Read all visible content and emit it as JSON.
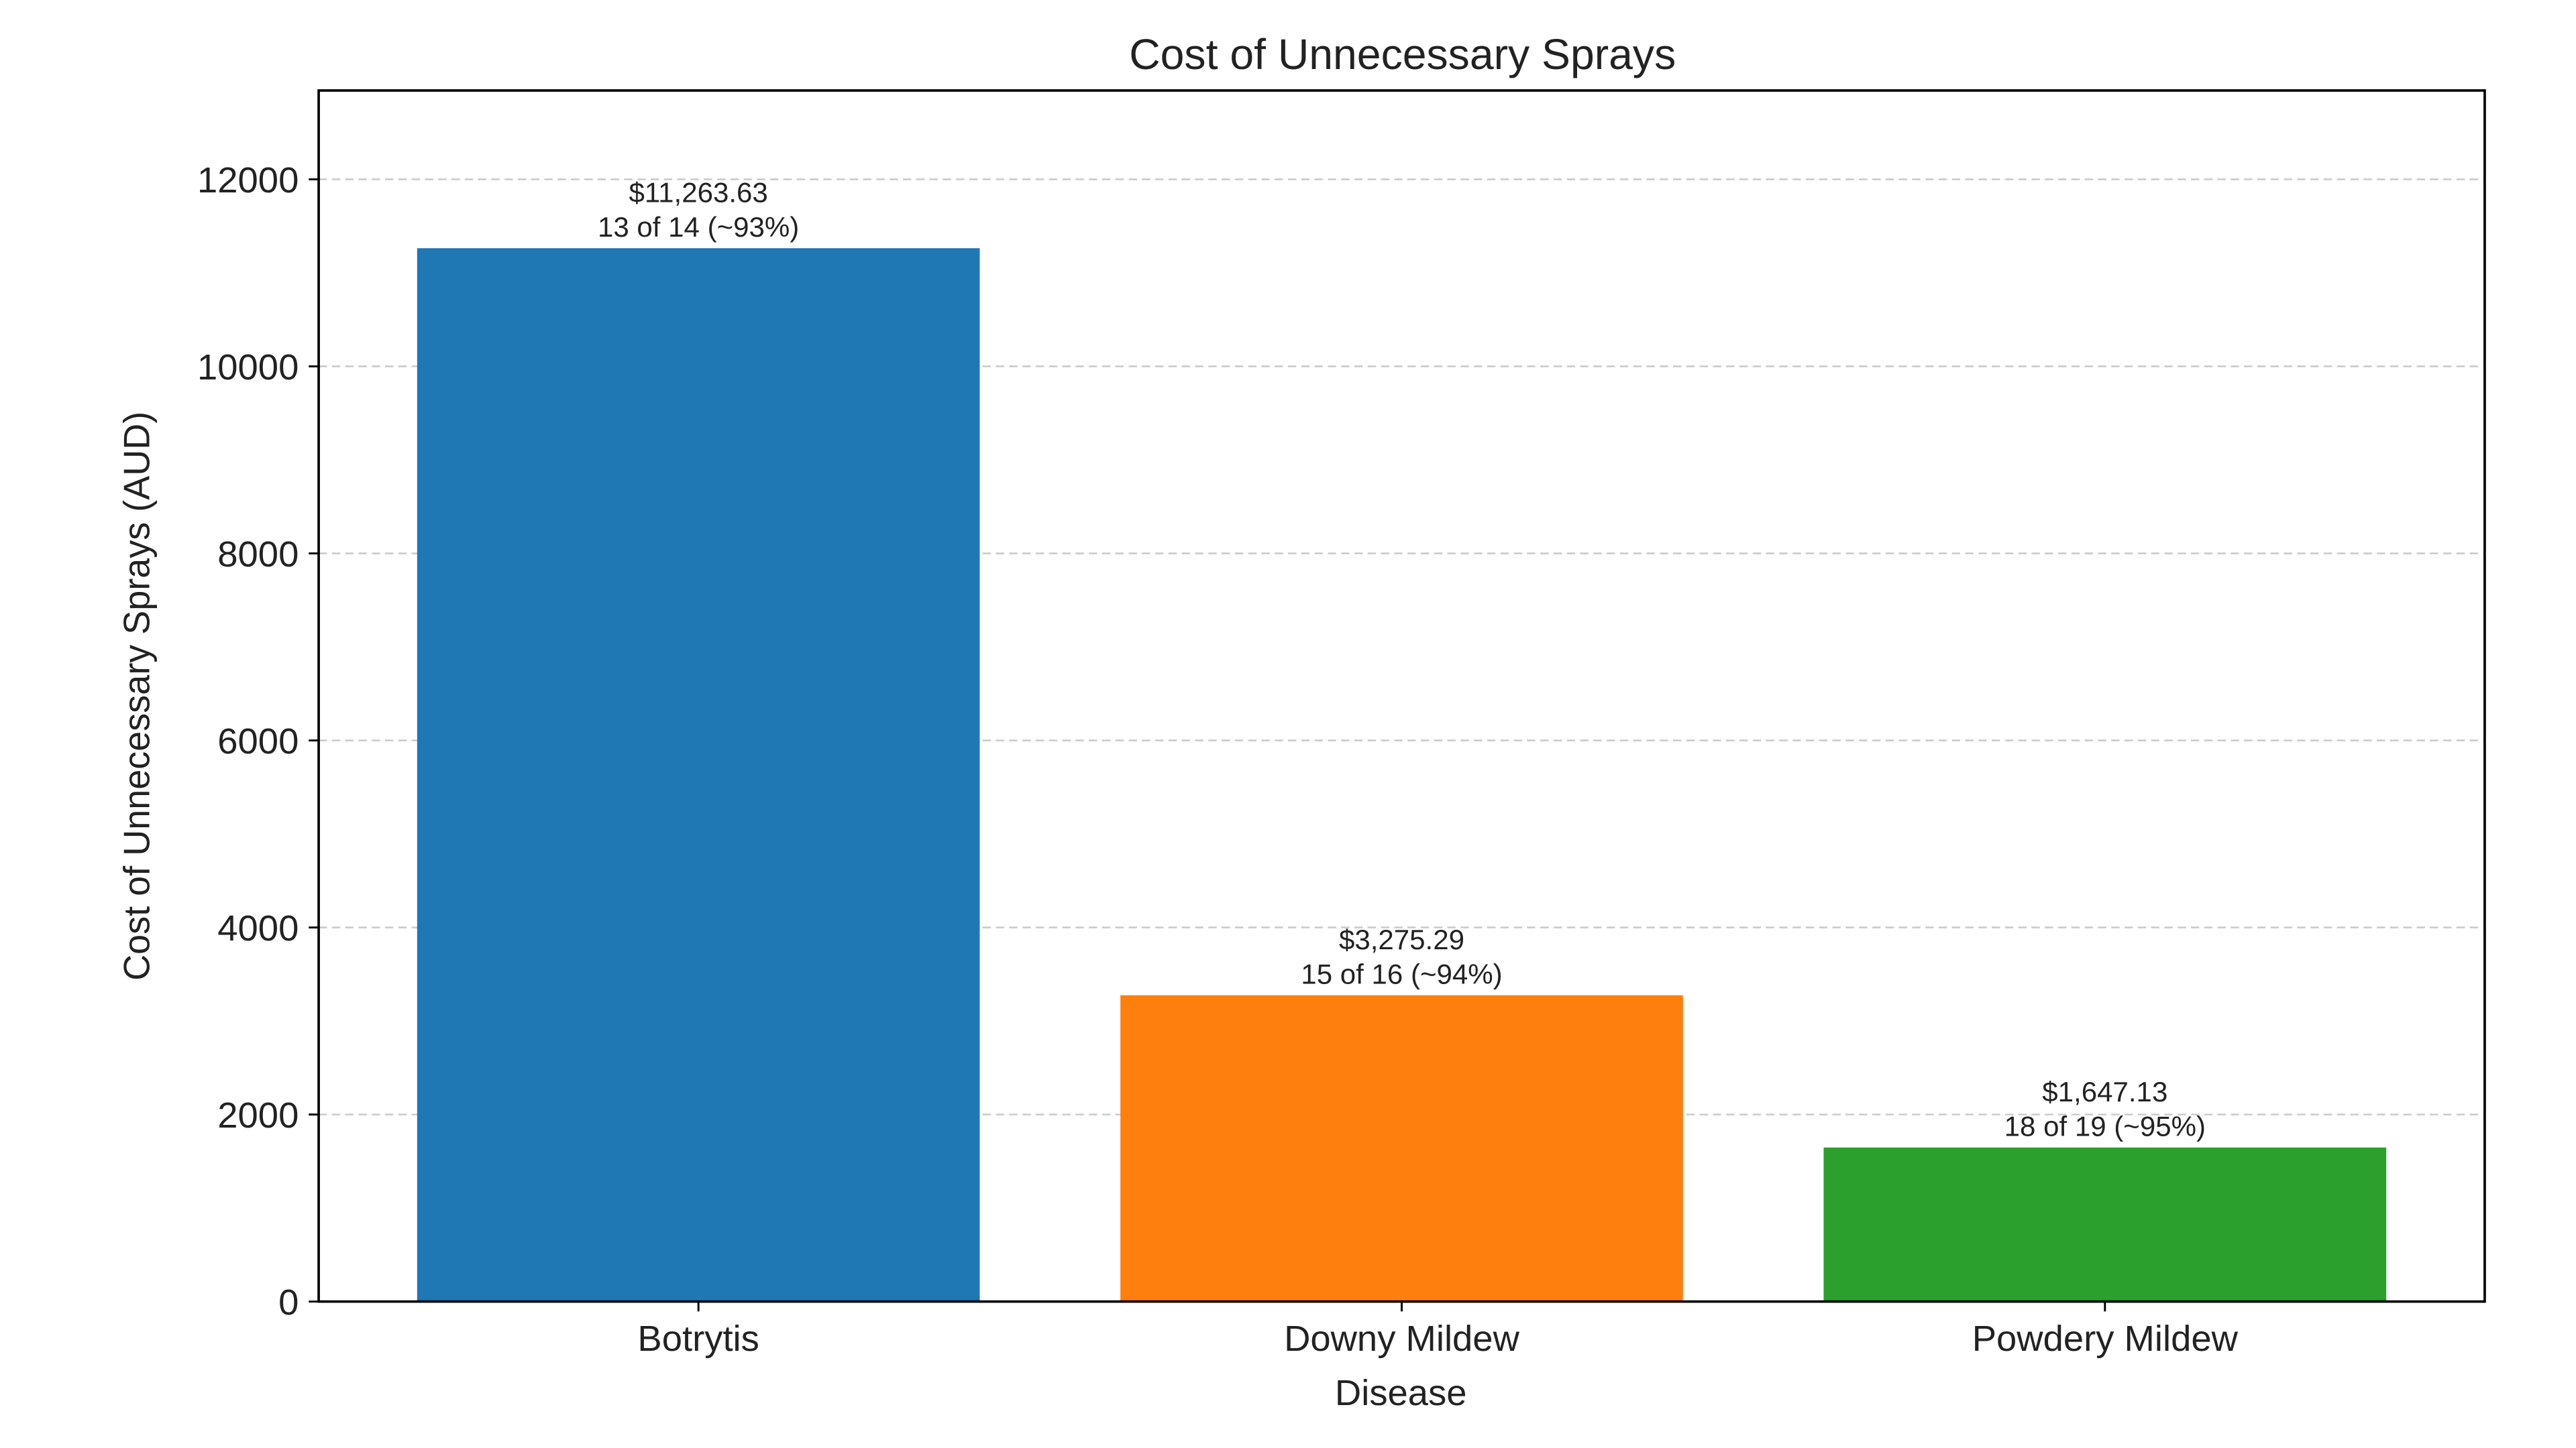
{
  "chart_data": {
    "type": "bar",
    "title": "Cost of Unnecessary Sprays",
    "xlabel": "Disease",
    "ylabel": "Cost of Unnecessary Sprays (AUD)",
    "categories": [
      "Botrytis",
      "Downy Mildew",
      "Powdery Mildew"
    ],
    "values": [
      11263.63,
      3275.29,
      1647.13
    ],
    "data_labels": [
      [
        "$11,263.63",
        "13 of 14 (~93%)"
      ],
      [
        "$3,275.29",
        "15 of 16 (~94%)"
      ],
      [
        "$1,647.13",
        "18 of 19 (~95%)"
      ]
    ],
    "colors": [
      "#1f77b4",
      "#ff7f0e",
      "#2ca02c"
    ],
    "ylim": [
      0,
      12950
    ],
    "xlim": [
      -0.54,
      2.54
    ],
    "yticks": [
      0,
      2000,
      4000,
      6000,
      8000,
      10000,
      12000
    ],
    "grid": "y-dashed",
    "legend": "none"
  }
}
